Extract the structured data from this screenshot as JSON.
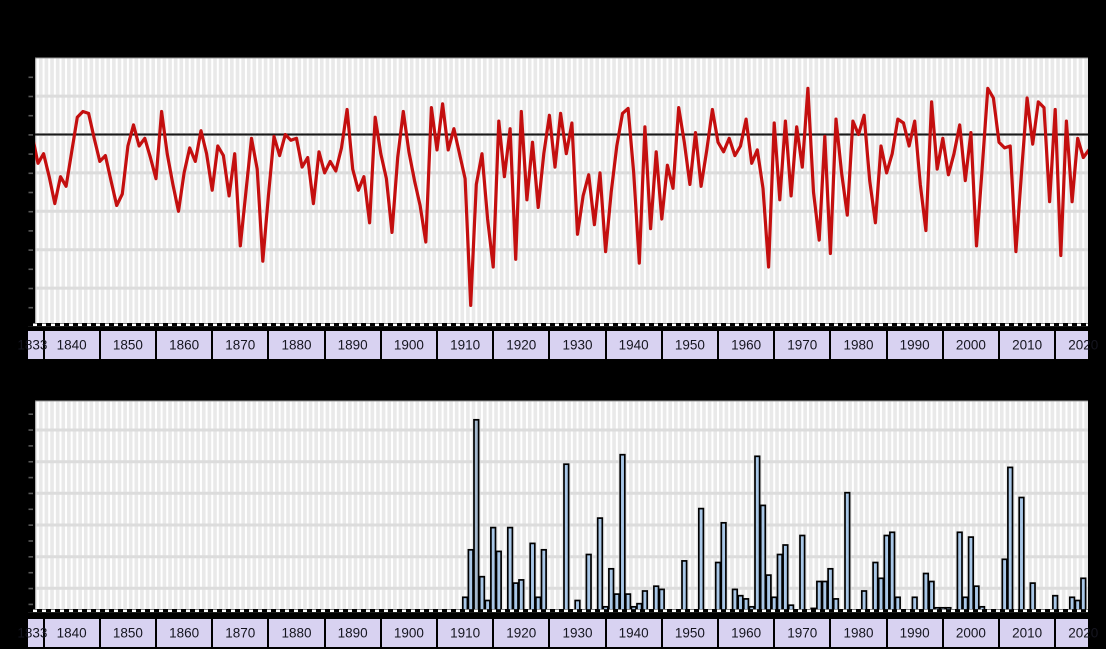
{
  "axis": {
    "first_label": "1833",
    "decade_labels": [
      "1840",
      "1850",
      "1860",
      "1870",
      "1880",
      "1890",
      "1900",
      "1910",
      "1920",
      "1930",
      "1940",
      "1950",
      "1960",
      "1970",
      "1980",
      "1990",
      "2000",
      "2010",
      "2020"
    ],
    "band_bg": "#d8d2f1",
    "divider_color": "#000000",
    "label_color": "#15151f"
  },
  "colors": {
    "background": "#000000",
    "plot_bg": "#e9e9e9",
    "v_grid": "#ffffff",
    "h_grid": "#dcdcdc",
    "plot_top_edge": "#9a9a9a",
    "left_border": "#000000",
    "tick": "#5a5a5a",
    "reference_line": "#1a1a1a",
    "line_series": "#c40f0f",
    "bar_fill": "#a9c7e7",
    "bar_fill_muted": "#a4b8cd",
    "bar_stroke": "#000000",
    "dash_black": "#000000",
    "dash_white": "#ffffff"
  },
  "chart_data": [
    {
      "id": "annual-anomaly-line",
      "type": "line",
      "title": "",
      "xlabel": "",
      "ylabel": "",
      "x_start": 1833,
      "x_end": 2021,
      "x_step": 1,
      "x_tick_labels": [
        "1833",
        "1840",
        "1850",
        "1860",
        "1870",
        "1880",
        "1890",
        "1900",
        "1910",
        "1920",
        "1930",
        "1940",
        "1950",
        "1960",
        "1970",
        "1980",
        "1990",
        "2000",
        "2010",
        "2020"
      ],
      "y_axis_labels_visible": false,
      "units_note": "values in horizontal-gridline units relative to the black reference line (reference = 0, one gridline = 1 unit); numeric y labels fall outside the cropped image",
      "ylim": [
        -5.1,
        2.0
      ],
      "reference_line_value": 0,
      "grid": true,
      "legend": "none",
      "color": "#c40f0f",
      "values": [
        -0.05,
        -0.75,
        -0.5,
        -1.1,
        -1.8,
        -1.1,
        -1.35,
        -0.45,
        0.45,
        0.6,
        0.55,
        -0.1,
        -0.7,
        -0.55,
        -1.2,
        -1.85,
        -1.55,
        -0.3,
        0.25,
        -0.3,
        -0.1,
        -0.6,
        -1.15,
        0.6,
        -0.5,
        -1.3,
        -2.0,
        -1.0,
        -0.35,
        -0.7,
        0.1,
        -0.5,
        -1.45,
        -0.3,
        -0.55,
        -1.6,
        -0.5,
        -2.9,
        -1.5,
        -0.1,
        -0.9,
        -3.3,
        -1.6,
        -0.05,
        -0.55,
        0.0,
        -0.15,
        -0.1,
        -0.85,
        -0.6,
        -1.8,
        -0.45,
        -1.0,
        -0.7,
        -0.95,
        -0.35,
        0.65,
        -0.9,
        -1.45,
        -1.1,
        -2.3,
        0.45,
        -0.5,
        -1.15,
        -2.55,
        -0.6,
        0.6,
        -0.45,
        -1.2,
        -1.85,
        -2.8,
        0.7,
        -0.4,
        0.8,
        -0.4,
        0.15,
        -0.5,
        -1.15,
        -4.45,
        -1.3,
        -0.5,
        -2.2,
        -3.45,
        0.35,
        -1.1,
        0.15,
        -3.25,
        0.6,
        -1.7,
        -0.2,
        -1.9,
        -0.5,
        0.5,
        -0.85,
        0.55,
        -0.5,
        0.3,
        -2.6,
        -1.6,
        -1.05,
        -2.35,
        -1.0,
        -3.05,
        -1.5,
        -0.3,
        0.55,
        0.68,
        -1.0,
        -3.35,
        0.2,
        -2.45,
        -0.45,
        -2.2,
        -0.8,
        -1.4,
        0.7,
        -0.2,
        -1.3,
        0.05,
        -1.35,
        -0.4,
        0.65,
        -0.2,
        -0.45,
        -0.1,
        -0.55,
        -0.3,
        0.4,
        -0.75,
        -0.4,
        -1.4,
        -3.45,
        0.3,
        -1.7,
        0.35,
        -1.6,
        0.2,
        -0.85,
        1.2,
        -1.5,
        -2.75,
        -0.05,
        -3.1,
        0.4,
        -1.0,
        -2.1,
        0.35,
        0.0,
        0.5,
        -1.2,
        -2.3,
        -0.3,
        -1.0,
        -0.5,
        0.4,
        0.3,
        -0.3,
        0.35,
        -1.3,
        -2.5,
        0.85,
        -0.9,
        -0.1,
        -1.05,
        -0.5,
        0.25,
        -1.2,
        0.05,
        -2.9,
        -0.9,
        1.2,
        0.95,
        -0.2,
        -0.35,
        -0.3,
        -3.05,
        -1.0,
        0.95,
        -0.25,
        0.85,
        0.7,
        -1.75,
        0.65,
        -3.15,
        0.35,
        -1.75,
        -0.1,
        -0.6,
        -0.4
      ]
    },
    {
      "id": "annual-event-bars",
      "type": "bar",
      "title": "",
      "xlabel": "",
      "ylabel": "",
      "x_tick_labels_note": "same decade axis as the line chart above (1833-2020)",
      "y_axis_labels_visible": false,
      "units_note": "bar heights in horizontal-gridline units (one gridline = 1 unit); years not listed have no bar; numeric y labels fall outside the cropped image",
      "ylim": [
        0,
        6.6
      ],
      "grid": true,
      "legend": "none",
      "bar_color": "#a9c7e7",
      "muted_bar_year": 1912,
      "points": [
        [
          1910,
          0.4
        ],
        [
          1911,
          1.9
        ],
        [
          1912,
          6.0
        ],
        [
          1913,
          1.05
        ],
        [
          1914,
          0.3
        ],
        [
          1915,
          2.6
        ],
        [
          1916,
          1.85
        ],
        [
          1918,
          2.6
        ],
        [
          1919,
          0.85
        ],
        [
          1920,
          0.95
        ],
        [
          1922,
          2.1
        ],
        [
          1923,
          0.4
        ],
        [
          1924,
          1.9
        ],
        [
          1928,
          4.6
        ],
        [
          1930,
          0.3
        ],
        [
          1932,
          1.75
        ],
        [
          1934,
          2.9
        ],
        [
          1935,
          0.1
        ],
        [
          1936,
          1.3
        ],
        [
          1937,
          0.5
        ],
        [
          1938,
          4.9
        ],
        [
          1939,
          0.5
        ],
        [
          1940,
          0.1
        ],
        [
          1941,
          0.2
        ],
        [
          1942,
          0.6
        ],
        [
          1944,
          0.75
        ],
        [
          1945,
          0.65
        ],
        [
          1949,
          1.55
        ],
        [
          1952,
          3.2
        ],
        [
          1955,
          1.5
        ],
        [
          1956,
          2.75
        ],
        [
          1958,
          0.65
        ],
        [
          1959,
          0.45
        ],
        [
          1960,
          0.35
        ],
        [
          1961,
          0.1
        ],
        [
          1962,
          4.85
        ],
        [
          1963,
          3.3
        ],
        [
          1964,
          1.1
        ],
        [
          1965,
          0.4
        ],
        [
          1966,
          1.75
        ],
        [
          1967,
          2.05
        ],
        [
          1968,
          0.15
        ],
        [
          1970,
          2.35
        ],
        [
          1972,
          0.05
        ],
        [
          1973,
          0.9
        ],
        [
          1974,
          0.9
        ],
        [
          1975,
          1.3
        ],
        [
          1976,
          0.35
        ],
        [
          1978,
          3.7
        ],
        [
          1981,
          0.6
        ],
        [
          1983,
          1.5
        ],
        [
          1984,
          1.0
        ],
        [
          1985,
          2.35
        ],
        [
          1986,
          2.45
        ],
        [
          1987,
          0.4
        ],
        [
          1990,
          0.4
        ],
        [
          1992,
          1.15
        ],
        [
          1993,
          0.9
        ],
        [
          1994,
          0.07
        ],
        [
          1995,
          0.07
        ],
        [
          1996,
          0.07
        ],
        [
          1998,
          2.45
        ],
        [
          1999,
          0.4
        ],
        [
          2000,
          2.3
        ],
        [
          2001,
          0.75
        ],
        [
          2002,
          0.1
        ],
        [
          2006,
          1.6
        ],
        [
          2007,
          4.5
        ],
        [
          2009,
          3.55
        ],
        [
          2011,
          0.85
        ],
        [
          2015,
          0.45
        ],
        [
          2018,
          0.4
        ],
        [
          2019,
          0.3
        ],
        [
          2020,
          1.0
        ]
      ]
    }
  ]
}
